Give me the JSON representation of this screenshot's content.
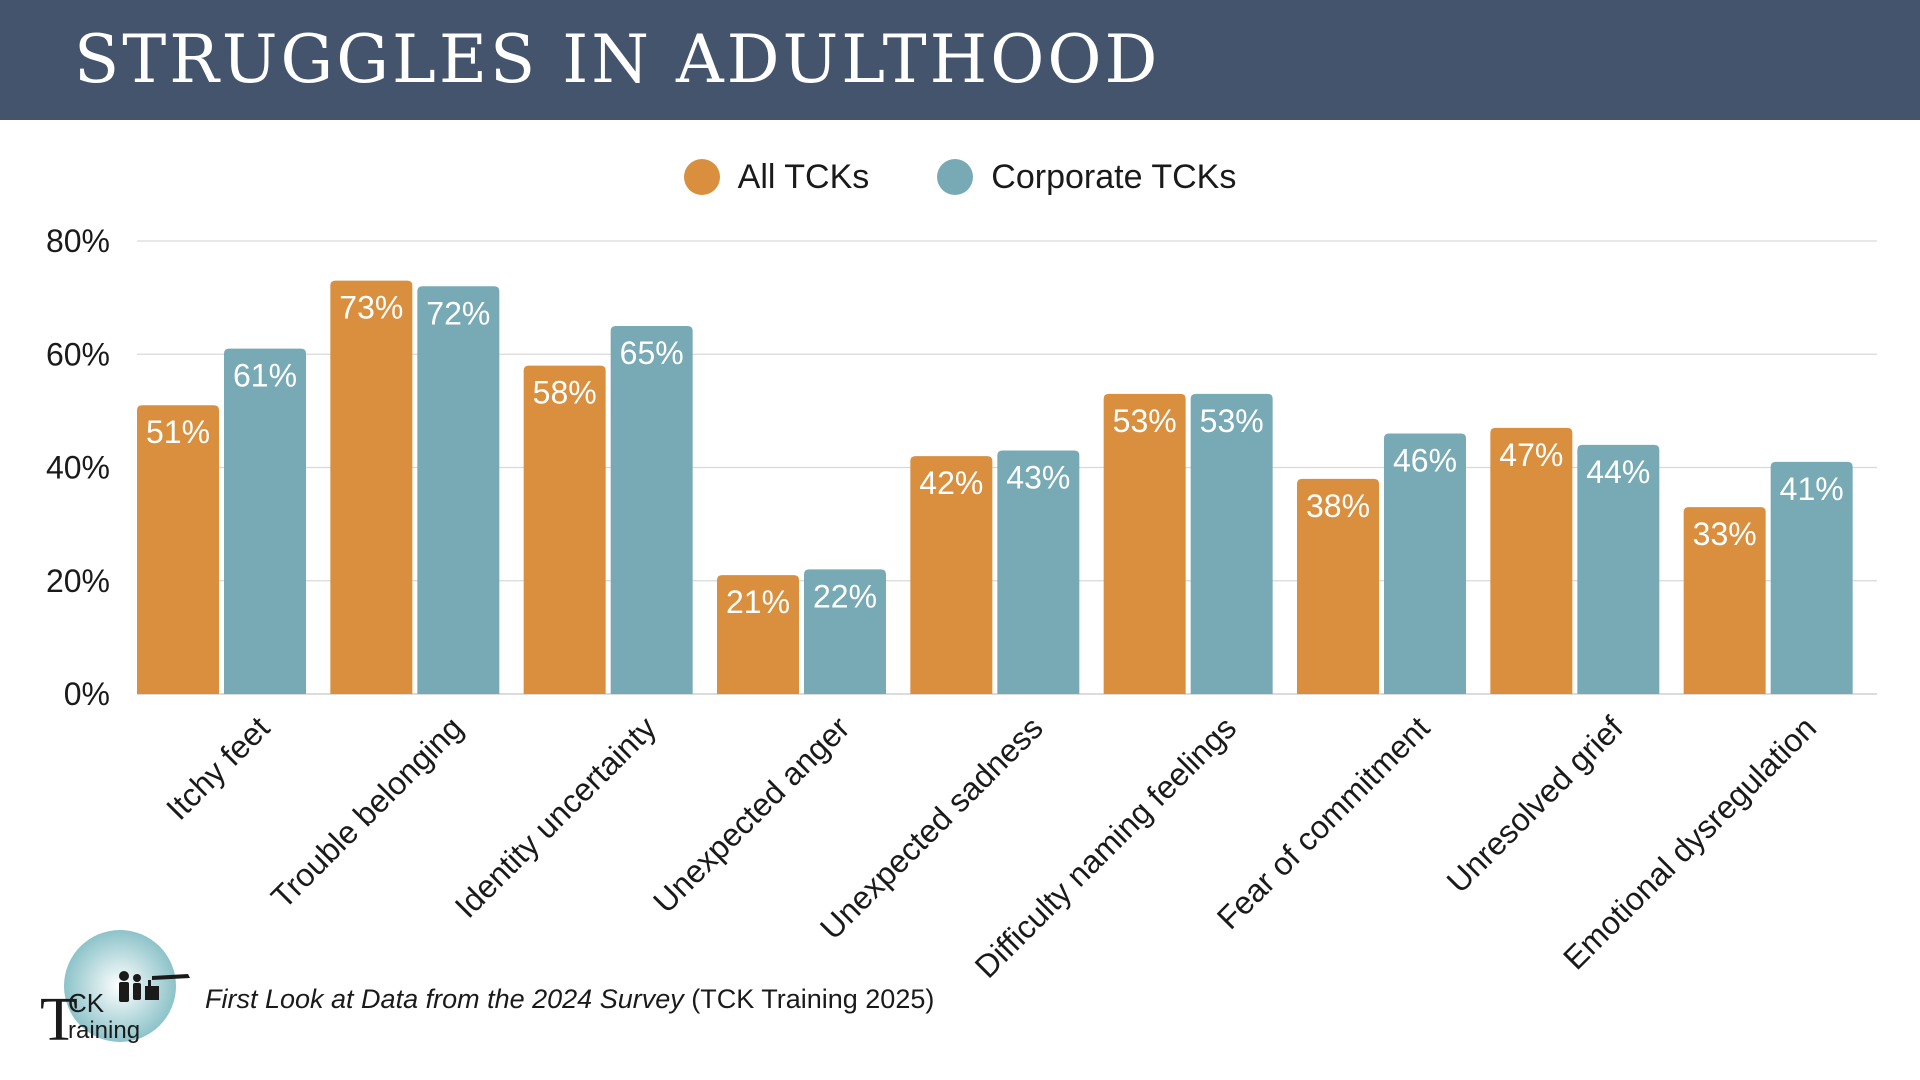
{
  "header": {
    "title": "STRUGGLES IN ADULTHOOD"
  },
  "colors": {
    "header_bg": "#44546c",
    "all_tcks": "#d98f3e",
    "corporate_tcks": "#78aab5"
  },
  "legend": {
    "items": [
      "All TCKs",
      "Corporate TCKs"
    ]
  },
  "chart_data": {
    "type": "bar",
    "title": "STRUGGLES IN ADULTHOOD",
    "categories": [
      "Itchy feet",
      "Trouble belonging",
      "Identity uncertainty",
      "Unexpected anger",
      "Unexpected sadness",
      "Difficulty naming feelings",
      "Fear of commitment",
      "Unresolved grief",
      "Emotional dysregulation"
    ],
    "series": [
      {
        "name": "All TCKs",
        "values": [
          51,
          73,
          58,
          21,
          42,
          53,
          38,
          47,
          33
        ]
      },
      {
        "name": "Corporate TCKs",
        "values": [
          61,
          72,
          65,
          22,
          43,
          53,
          46,
          44,
          41
        ]
      }
    ],
    "ylim": [
      0,
      80
    ],
    "yticks": [
      "0%",
      "20%",
      "40%",
      "60%",
      "80%"
    ],
    "value_suffix": "%",
    "grid": true,
    "legend_position": "top"
  },
  "footer": {
    "logo_text_1": "CK",
    "logo_text_2": "raining",
    "logo_letter": "T",
    "source_italic": "First Look at Data from the 2024 Survey",
    "source_plain": " (TCK Training 2025)"
  }
}
